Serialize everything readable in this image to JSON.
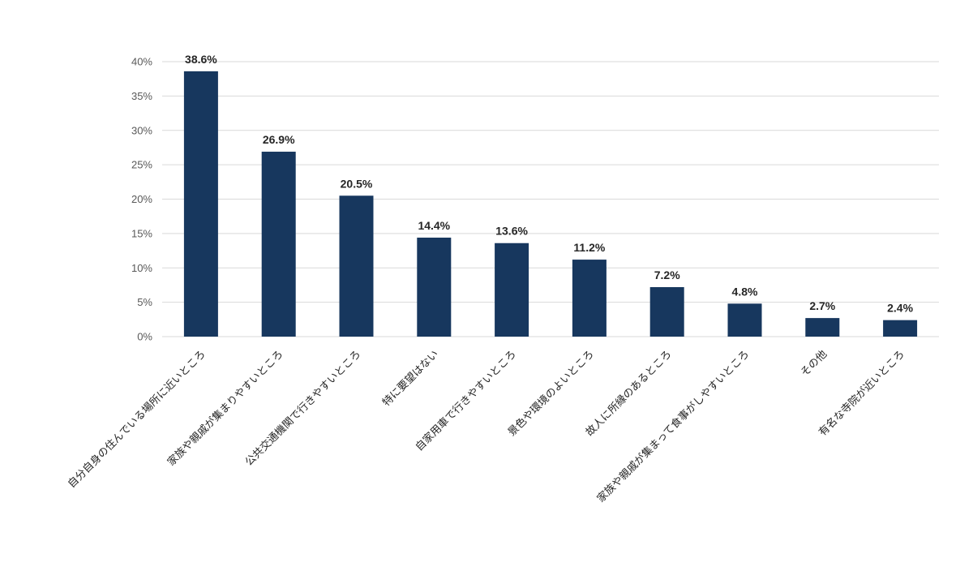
{
  "chart_data": {
    "type": "bar",
    "categories": [
      "自分自身の住んでいる場所に近いところ",
      "家族や親戚が集まりやすいところ",
      "公共交通機関で行きやすいところ",
      "特に要望はない",
      "自家用車で行きやすいところ",
      "景色や環境のよいところ",
      "故人に所縁のあるところ",
      "家族や親戚が集まって食事がしやすいところ",
      "その他",
      "有名な寺院が近いところ"
    ],
    "values": [
      38.6,
      26.9,
      20.5,
      14.4,
      13.6,
      11.2,
      7.2,
      4.8,
      2.7,
      2.4
    ],
    "data_labels": [
      "38.6%",
      "26.9%",
      "20.5%",
      "14.4%",
      "13.6%",
      "11.2%",
      "7.2%",
      "4.8%",
      "2.7%",
      "2.4%"
    ],
    "y_ticks": [
      "0%",
      "5%",
      "10%",
      "15%",
      "20%",
      "25%",
      "30%",
      "35%",
      "40%"
    ],
    "ylim": [
      0,
      40
    ],
    "grid": true,
    "legend": "none",
    "bar_color": "#17375e",
    "title": "",
    "xlabel": "",
    "ylabel": ""
  }
}
